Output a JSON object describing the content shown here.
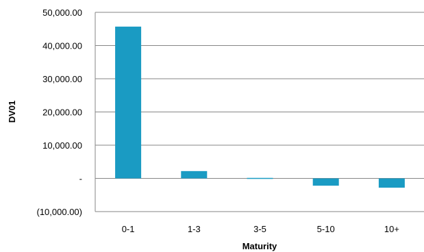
{
  "chart_data": {
    "type": "bar",
    "title": "",
    "xlabel": "Maturity",
    "ylabel": "DV01",
    "categories": [
      "0-1",
      "1-3",
      "3-5",
      "5-10",
      "10+"
    ],
    "values": [
      45700,
      2200,
      150,
      -2200,
      -2800
    ],
    "ylim": [
      -10000,
      50000
    ],
    "y_ticks": [
      {
        "value": 50000,
        "label": "50,000.00"
      },
      {
        "value": 40000,
        "label": "40,000.00"
      },
      {
        "value": 30000,
        "label": "30,000.00"
      },
      {
        "value": 20000,
        "label": "20,000.00"
      },
      {
        "value": 10000,
        "label": "10,000.00"
      },
      {
        "value": 0,
        "label": "-"
      },
      {
        "value": -10000,
        "label": "(10,000.00)"
      }
    ],
    "grid": true,
    "legend": "none",
    "bar_color": "#1A9BC3",
    "grid_color": "#868686"
  }
}
